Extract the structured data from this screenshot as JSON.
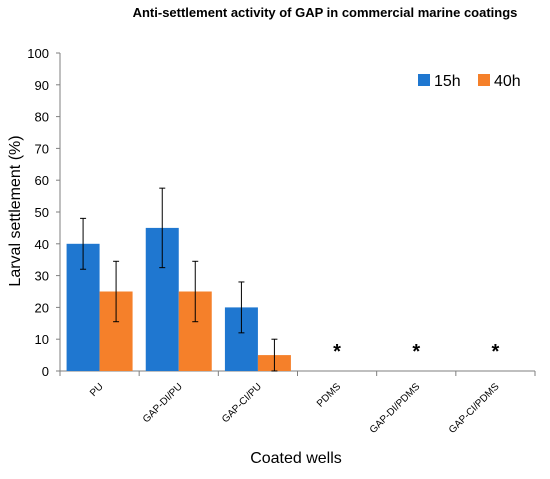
{
  "chart_data": {
    "type": "bar",
    "title": "Anti-settlement activity of GAP in commercial marine coatings",
    "xlabel": "Coated wells",
    "ylabel": "Larval settlement (%)",
    "ylim": [
      0,
      100
    ],
    "yticks": [
      0,
      10,
      20,
      30,
      40,
      50,
      60,
      70,
      80,
      90,
      100
    ],
    "categories": [
      "PU",
      "GAP-DI/PU",
      "GAP-CI/PU",
      "PDMS",
      "GAP-DI/PDMS",
      "GAP-CI/PDMS"
    ],
    "series": [
      {
        "name": "15h",
        "color": "#1f77d0",
        "values": [
          40,
          45,
          20,
          0,
          0,
          0
        ],
        "errors": [
          8,
          12.5,
          8,
          0,
          0,
          0
        ]
      },
      {
        "name": "40h",
        "color": "#f5802a",
        "values": [
          25,
          25,
          5,
          0,
          0,
          0
        ],
        "errors": [
          9.5,
          9.5,
          5,
          0,
          0,
          0
        ]
      }
    ],
    "annotations": [
      {
        "category": "PDMS",
        "text": "*"
      },
      {
        "category": "GAP-DI/PDMS",
        "text": "*"
      },
      {
        "category": "GAP-CI/PDMS",
        "text": "*"
      }
    ],
    "legend_position": "top-right",
    "grid": false
  }
}
